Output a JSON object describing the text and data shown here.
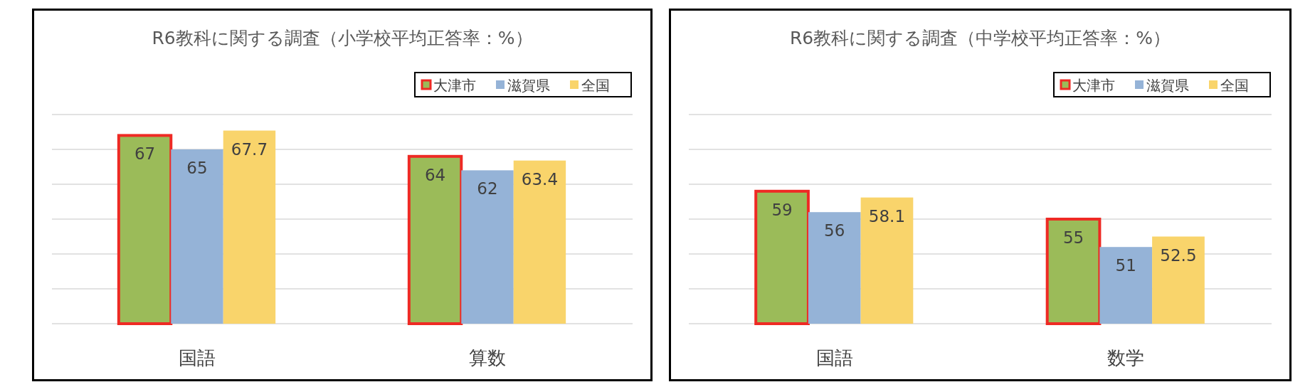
{
  "chart_data": [
    {
      "type": "bar",
      "title": "R6教科に関する調査（小学校平均正答率：%）",
      "categories": [
        "国語",
        "算数"
      ],
      "series": [
        {
          "name": "大津市",
          "color": "#9bbb59",
          "values": [
            67,
            64
          ]
        },
        {
          "name": "滋賀県",
          "color": "#95b3d7",
          "values": [
            65,
            62
          ]
        },
        {
          "name": "全国",
          "color": "#f9d46b",
          "values": [
            67.7,
            63.4
          ]
        }
      ],
      "ylim": [
        40,
        70
      ],
      "yticks": [
        {
          "value": 40,
          "label": null
        },
        {
          "value": 45,
          "label": null
        },
        {
          "value": 50,
          "label": null
        },
        {
          "value": 55,
          "label": null
        },
        {
          "value": 60,
          "label": null
        },
        {
          "value": 65,
          "label": null
        },
        {
          "value": 70,
          "label": null
        }
      ],
      "grid": "y",
      "legend": "top right",
      "data_labels": true
    },
    {
      "type": "bar",
      "title": "R6教科に関する調査（中学校平均正答率：%）",
      "categories": [
        "国語",
        "数学"
      ],
      "series": [
        {
          "name": "大津市",
          "color": "#9bbb59",
          "values": [
            59,
            55
          ]
        },
        {
          "name": "滋賀県",
          "color": "#95b3d7",
          "values": [
            56,
            51
          ]
        },
        {
          "name": "全国",
          "color": "#f9d46b",
          "values": [
            58.1,
            52.5
          ]
        }
      ],
      "ylim": [
        40,
        70
      ],
      "yticks": [
        {
          "value": 40,
          "label": null
        },
        {
          "value": 45,
          "label": null
        },
        {
          "value": 50,
          "label": null
        },
        {
          "value": 55,
          "label": null
        },
        {
          "value": 60,
          "label": null
        },
        {
          "value": 65,
          "label": null
        },
        {
          "value": 70,
          "label": null
        }
      ],
      "grid": "y",
      "legend": "top right",
      "data_labels": true
    }
  ]
}
